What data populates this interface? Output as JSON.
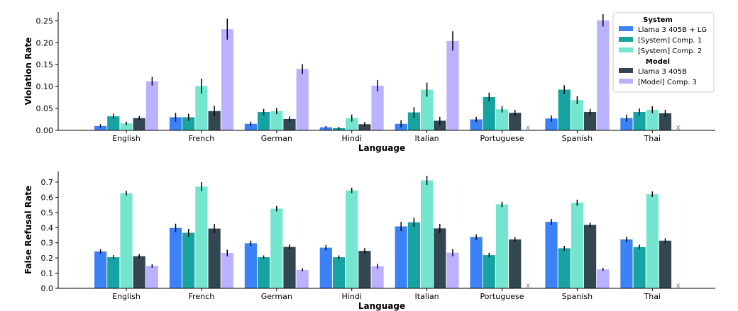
{
  "colors": {
    "llama_lg": "#3b82f6",
    "system_comp1": "#16a3a1",
    "system_comp2": "#74e6d0",
    "llama_405b": "#334652",
    "model_comp3": "#bbb2ff",
    "error_bar": "#000000",
    "axis": "#000000"
  },
  "chart_data": [
    {
      "type": "bar",
      "id": "violation",
      "xlabel": "Language",
      "ylabel": "Violation Rate",
      "ylim": [
        0,
        0.27
      ],
      "yticks": [
        "0.00",
        "0.05",
        "0.10",
        "0.15",
        "0.20",
        "0.25"
      ],
      "categories": [
        "English",
        "French",
        "German",
        "Hindi",
        "Italian",
        "Portuguese",
        "Spanish",
        "Thai"
      ],
      "missing_marker": "x",
      "series": [
        {
          "name": "Llama 3 405B + LG",
          "color_key": "llama_lg",
          "values": [
            0.01,
            0.03,
            0.015,
            0.007,
            0.015,
            0.025,
            0.027,
            0.028
          ],
          "errors": [
            0.004,
            0.01,
            0.005,
            0.003,
            0.008,
            0.006,
            0.007,
            0.008
          ]
        },
        {
          "name": "[System] Comp. 1",
          "color_key": "system_comp1",
          "values": [
            0.032,
            0.03,
            0.042,
            0.005,
            0.041,
            0.076,
            0.093,
            0.042
          ],
          "errors": [
            0.006,
            0.008,
            0.007,
            0.003,
            0.012,
            0.01,
            0.01,
            0.008
          ]
        },
        {
          "name": "[System] Comp. 2",
          "color_key": "system_comp2",
          "values": [
            0.016,
            0.101,
            0.044,
            0.028,
            0.093,
            0.048,
            0.069,
            0.047
          ],
          "errors": [
            0.004,
            0.017,
            0.007,
            0.008,
            0.016,
            0.007,
            0.009,
            0.008
          ]
        },
        {
          "name": "Llama 3 405B",
          "color_key": "llama_405b",
          "values": [
            0.028,
            0.044,
            0.026,
            0.014,
            0.022,
            0.04,
            0.042,
            0.039
          ],
          "errors": [
            0.005,
            0.012,
            0.006,
            0.005,
            0.009,
            0.007,
            0.007,
            0.008
          ]
        },
        {
          "name": "[Model] Comp. 3",
          "color_key": "model_comp3",
          "values": [
            0.112,
            0.231,
            0.14,
            0.102,
            0.204,
            null,
            0.251,
            null
          ],
          "errors": [
            0.01,
            0.024,
            0.011,
            0.013,
            0.022,
            null,
            0.014,
            null
          ]
        }
      ],
      "legend": {
        "placement": "top-right",
        "groups": [
          {
            "title": "System",
            "entries": [
              "Llama 3 405B + LG",
              "[System] Comp. 1",
              "[System] Comp. 2"
            ]
          },
          {
            "title": "Model",
            "entries": [
              "Llama 3 405B",
              "[Model] Comp. 3"
            ]
          }
        ]
      }
    },
    {
      "type": "bar",
      "id": "refusal",
      "xlabel": "Language",
      "ylabel": "False Refusal Rate",
      "ylim": [
        0,
        0.77
      ],
      "yticks": [
        "0.0",
        "0.1",
        "0.2",
        "0.3",
        "0.4",
        "0.5",
        "0.6",
        "0.7"
      ],
      "categories": [
        "English",
        "French",
        "German",
        "Hindi",
        "Italian",
        "Portuguese",
        "Spanish",
        "Thai"
      ],
      "missing_marker": "x",
      "series": [
        {
          "name": "Llama 3 405B + LG",
          "color_key": "llama_lg",
          "values": [
            0.243,
            0.398,
            0.297,
            0.268,
            0.408,
            0.338,
            0.438,
            0.322
          ],
          "errors": [
            0.015,
            0.028,
            0.017,
            0.018,
            0.03,
            0.018,
            0.019,
            0.018
          ]
        },
        {
          "name": "[System] Comp. 1",
          "color_key": "system_comp1",
          "values": [
            0.205,
            0.366,
            0.205,
            0.205,
            0.435,
            0.219,
            0.264,
            0.272
          ],
          "errors": [
            0.014,
            0.026,
            0.012,
            0.012,
            0.03,
            0.015,
            0.016,
            0.016
          ]
        },
        {
          "name": "[System] Comp. 2",
          "color_key": "system_comp2",
          "values": [
            0.627,
            0.67,
            0.525,
            0.645,
            0.711,
            0.553,
            0.564,
            0.62
          ],
          "errors": [
            0.015,
            0.03,
            0.018,
            0.018,
            0.03,
            0.018,
            0.02,
            0.018
          ]
        },
        {
          "name": "Llama 3 405B",
          "color_key": "llama_405b",
          "values": [
            0.212,
            0.394,
            0.273,
            0.247,
            0.395,
            0.322,
            0.418,
            0.314
          ],
          "errors": [
            0.014,
            0.03,
            0.016,
            0.018,
            0.03,
            0.015,
            0.016,
            0.016
          ]
        },
        {
          "name": "[Model] Comp. 3",
          "color_key": "model_comp3",
          "values": [
            0.148,
            0.233,
            0.122,
            0.145,
            0.235,
            null,
            0.125,
            null
          ],
          "errors": [
            0.012,
            0.022,
            0.01,
            0.016,
            0.024,
            null,
            0.01,
            null
          ]
        }
      ]
    }
  ]
}
